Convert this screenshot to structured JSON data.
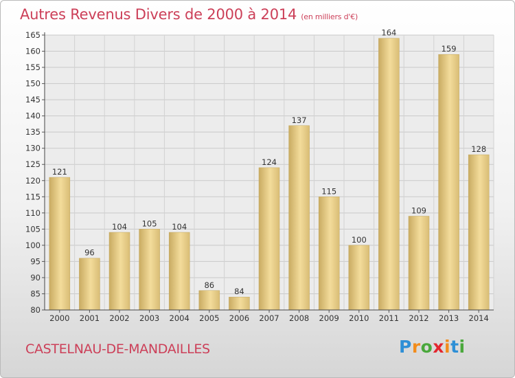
{
  "title": "Autres Revenus Divers de 2000 à 2014",
  "unit_note": "(en milliers d'€)",
  "town": "CASTELNAU-DE-MANDAILLES",
  "logo": {
    "letters": [
      "P",
      "r",
      "o",
      "x",
      "i",
      "t",
      "i"
    ],
    "colors": [
      "#2e8fd6",
      "#f28c1c",
      "#4aa83c",
      "#e3262e",
      "#f28c1c",
      "#2e8fd6",
      "#4aa83c"
    ]
  },
  "chart_data": {
    "type": "bar",
    "categories": [
      "2000",
      "2001",
      "2002",
      "2003",
      "2004",
      "2005",
      "2006",
      "2007",
      "2008",
      "2009",
      "2010",
      "2011",
      "2012",
      "2013",
      "2014"
    ],
    "values": [
      121,
      96,
      104,
      105,
      104,
      86,
      84,
      124,
      137,
      115,
      100,
      164,
      109,
      159,
      128
    ],
    "ylim": [
      80,
      165
    ],
    "yticks": [
      80,
      85,
      90,
      95,
      100,
      105,
      110,
      115,
      120,
      125,
      130,
      135,
      140,
      145,
      150,
      155,
      160,
      165
    ],
    "grid": true,
    "bar_color": "#e2c677",
    "xlabel": "",
    "ylabel": ""
  }
}
